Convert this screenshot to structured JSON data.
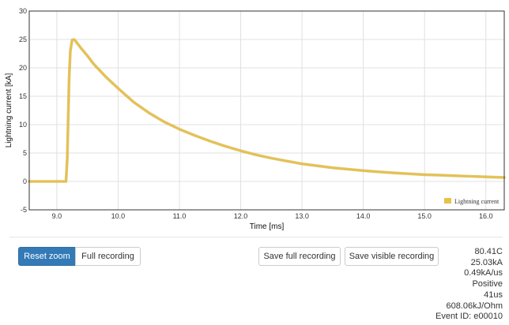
{
  "chart_data": {
    "type": "line",
    "title": "",
    "xlabel": "Time [ms]",
    "ylabel": "Lightning current [kA]",
    "xlim": [
      8.55,
      16.3
    ],
    "ylim": [
      -5,
      30
    ],
    "xticks": [
      9.0,
      10.0,
      11.0,
      12.0,
      13.0,
      14.0,
      15.0,
      16.0
    ],
    "xtick_labels": [
      "9.0",
      "10.0",
      "11.0",
      "12.0",
      "13.0",
      "14.0",
      "15.0",
      "16.0"
    ],
    "yticks": [
      -5,
      0,
      5,
      10,
      15,
      20,
      25,
      30
    ],
    "ytick_labels": [
      "-5",
      "0",
      "5",
      "10",
      "15",
      "20",
      "25",
      "30"
    ],
    "grid": true,
    "legend_position": "bottom-right",
    "series": [
      {
        "name": "Lightning current",
        "color": "#e8c14a",
        "x": [
          8.55,
          8.75,
          9.0,
          9.15,
          9.17,
          9.19,
          9.2,
          9.22,
          9.25,
          9.28,
          9.3,
          9.35,
          9.4,
          9.5,
          9.6,
          9.8,
          10.0,
          10.25,
          10.5,
          10.75,
          11.0,
          11.25,
          11.5,
          11.75,
          12.0,
          12.25,
          12.5,
          12.75,
          13.0,
          13.25,
          13.5,
          13.75,
          14.0,
          14.25,
          14.5,
          14.75,
          15.0,
          15.25,
          15.5,
          15.75,
          16.0,
          16.3
        ],
        "y": [
          0,
          0,
          0,
          0,
          4,
          13,
          18,
          23,
          24.9,
          25.0,
          24.8,
          24.1,
          23.4,
          22.1,
          20.7,
          18.4,
          16.4,
          14.0,
          12.1,
          10.5,
          9.2,
          8.1,
          7.1,
          6.2,
          5.4,
          4.7,
          4.1,
          3.6,
          3.1,
          2.75,
          2.4,
          2.15,
          1.9,
          1.7,
          1.5,
          1.35,
          1.2,
          1.1,
          1.0,
          0.9,
          0.8,
          0.7
        ]
      }
    ]
  },
  "controls": {
    "reset_zoom": "Reset zoom",
    "full_recording": "Full recording",
    "save_full": "Save full recording",
    "save_visible": "Save visible recording"
  },
  "stats": {
    "charge": "80.41C",
    "peak_current": "25.03kA",
    "steepness": "0.49kA/us",
    "polarity": "Positive",
    "duration": "41us",
    "specific_energy": "608.06kJ/Ohm",
    "event_id": "Event ID: e00010"
  },
  "colors": {
    "primary_button": "#337ab7",
    "series": "#e8c14a",
    "grid": "#e0e0e0"
  }
}
